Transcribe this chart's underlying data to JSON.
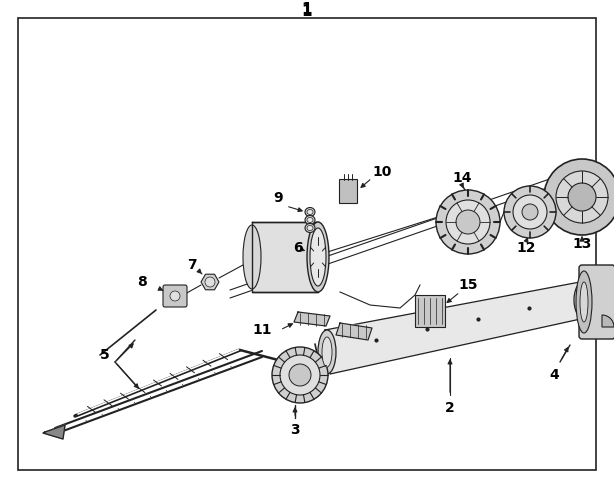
{
  "background_color": "#ffffff",
  "border_color": "#222222",
  "line_color": "#222222",
  "text_color": "#000000",
  "fig_width": 6.14,
  "fig_height": 4.88,
  "dpi": 100
}
